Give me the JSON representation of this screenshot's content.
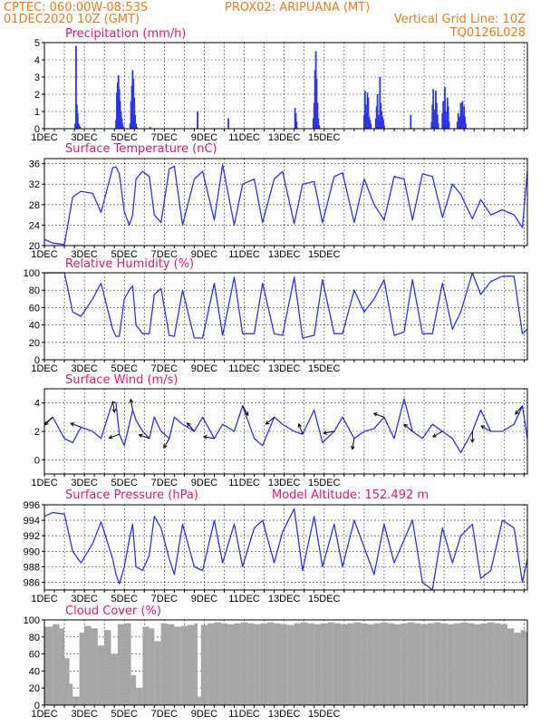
{
  "header": {
    "line1_left": "CPTEC:   060:00W-08:53S",
    "line1_right": "PROX02: ARIPUANA (MT)",
    "line2_left": "01DEC2020 10Z (GMT)",
    "line2_right": "Vertical Grid Line: 10Z",
    "line3_right": "TQ0126L028"
  },
  "x_ticks": [
    "1DEC",
    "3DEC",
    "5DEC",
    "7DEC",
    "9DEC",
    "11DEC",
    "13DEC",
    "15DEC"
  ],
  "colors": {
    "line": "#2a35e8",
    "bar": "#2a35e8",
    "cloud": "#a6a6a6",
    "header": "#e87a1e",
    "title": "#e0157a",
    "grid": "#000000"
  },
  "chart_data": [
    {
      "id": "precip",
      "type": "bar",
      "title": "Precipitation (mm/h)",
      "ylim": [
        0,
        5
      ],
      "yticks": [
        "0",
        "1",
        "2",
        "3",
        "4",
        "5"
      ],
      "x_unit": "hours since 01DEC2020 10Z",
      "x": [
        37,
        38,
        39,
        40,
        41,
        42,
        43,
        86,
        87,
        88,
        89,
        90,
        91,
        92,
        93,
        94,
        95,
        103,
        104,
        105,
        106,
        107,
        108,
        109,
        110,
        111,
        127,
        184,
        221,
        301,
        302,
        303,
        323,
        324,
        325,
        326,
        327,
        328,
        329,
        330,
        384,
        385,
        386,
        387,
        388,
        389,
        390,
        391,
        392,
        398,
        399,
        400,
        401,
        402,
        403,
        404,
        405,
        406,
        407,
        408,
        440,
        465,
        466,
        467,
        468,
        469,
        470,
        471,
        472,
        473,
        478,
        479,
        480,
        481,
        482,
        483,
        484,
        485,
        486,
        496,
        497,
        498,
        499,
        500,
        501,
        502,
        503,
        504,
        505,
        506
      ],
      "values": [
        0.3,
        4.8,
        1.4,
        0.9,
        0.3,
        0.2,
        0.1,
        0.5,
        2.1,
        2.7,
        3.1,
        2.3,
        1.6,
        1.0,
        0.6,
        0.3,
        0.1,
        0.3,
        1.6,
        2.5,
        3.4,
        2.9,
        1.8,
        0.8,
        0.3,
        0.1,
        0.1,
        1.0,
        0.6,
        1.2,
        0.9,
        0.4,
        0.6,
        1.5,
        3.4,
        4.5,
        2.9,
        1.5,
        0.6,
        0.2,
        0.8,
        2.2,
        1.4,
        0.9,
        2.1,
        1.8,
        0.7,
        0.5,
        0.3,
        0.6,
        1.3,
        2.0,
        0.8,
        0.4,
        3.0,
        1.5,
        1.0,
        0.7,
        0.5,
        0.2,
        0.8,
        0.4,
        1.4,
        2.3,
        1.1,
        0.5,
        2.2,
        1.5,
        0.8,
        0.3,
        0.9,
        1.6,
        1.2,
        2.4,
        1.0,
        0.5,
        1.8,
        1.3,
        0.4,
        0.4,
        0.9,
        0.5,
        0.7,
        1.5,
        1.1,
        1.6,
        0.8,
        1.3,
        0.7,
        0.3
      ]
    },
    {
      "id": "temp",
      "type": "line",
      "title": "Surface Temperature (nC)",
      "ylim": [
        20,
        37
      ],
      "yticks": [
        "20",
        "24",
        "28",
        "32",
        "36"
      ],
      "x_unit": "hours since 01DEC2020 10Z",
      "x": [
        0,
        10,
        24,
        34,
        44,
        58,
        68,
        82,
        86,
        90,
        96,
        102,
        106,
        110,
        118,
        126,
        132,
        140,
        150,
        156,
        166,
        180,
        190,
        204,
        214,
        228,
        238,
        252,
        262,
        276,
        286,
        300,
        310,
        324,
        334,
        348,
        358,
        372,
        384,
        396,
        408,
        420,
        432,
        442,
        454,
        466,
        478,
        490,
        500,
        514,
        524,
        536,
        550,
        564,
        574,
        580
      ],
      "values": [
        21.2,
        20.5,
        20.2,
        29.5,
        30.6,
        30.2,
        26.5,
        35.2,
        35.4,
        34.0,
        26.6,
        24.0,
        26.0,
        33.0,
        34.5,
        33.5,
        26.0,
        24.5,
        35.0,
        35.5,
        24.0,
        33.0,
        34.5,
        25.0,
        35.8,
        24.0,
        32.0,
        33.0,
        24.5,
        33.0,
        34.5,
        24.3,
        32.0,
        32.5,
        24.5,
        33.5,
        34.2,
        24.5,
        33.0,
        28.0,
        25.0,
        33.5,
        33.0,
        25.0,
        34.0,
        33.5,
        25.5,
        32.0,
        30.0,
        25.2,
        29.0,
        26.0,
        27.0,
        26.0,
        23.5,
        34.5
      ]
    },
    {
      "id": "rh",
      "type": "line",
      "title": "Relative Humidity (%)",
      "ylim": [
        0,
        100
      ],
      "yticks": [
        "0",
        "20",
        "40",
        "60",
        "80",
        "100"
      ],
      "x_unit": "hours since 01DEC2020 10Z",
      "x": [
        0,
        10,
        24,
        34,
        44,
        58,
        68,
        82,
        86,
        90,
        96,
        102,
        106,
        110,
        118,
        126,
        132,
        140,
        150,
        156,
        166,
        180,
        190,
        204,
        214,
        228,
        238,
        252,
        262,
        276,
        286,
        300,
        310,
        324,
        334,
        348,
        358,
        372,
        384,
        396,
        408,
        420,
        432,
        442,
        454,
        466,
        478,
        490,
        500,
        514,
        524,
        536,
        550,
        564,
        574,
        580
      ],
      "values": [
        100,
        100,
        100,
        55,
        50,
        70,
        88,
        35,
        27,
        27,
        70,
        80,
        85,
        40,
        30,
        30,
        75,
        82,
        28,
        27,
        80,
        25,
        25,
        88,
        28,
        95,
        30,
        30,
        88,
        30,
        28,
        95,
        25,
        28,
        92,
        30,
        30,
        80,
        55,
        70,
        92,
        28,
        32,
        92,
        30,
        30,
        88,
        35,
        55,
        100,
        75,
        90,
        96,
        96,
        30,
        35
      ]
    },
    {
      "id": "wind",
      "type": "line",
      "title": "Surface Wind (m/s)",
      "ylim": [
        -1,
        5
      ],
      "yticks": [
        "0",
        "2",
        "4"
      ],
      "x_unit": "hours since 01DEC2020 10Z",
      "x": [
        0,
        10,
        24,
        34,
        44,
        58,
        68,
        82,
        86,
        90,
        96,
        102,
        106,
        110,
        118,
        126,
        132,
        140,
        150,
        156,
        166,
        180,
        190,
        204,
        214,
        228,
        238,
        252,
        262,
        276,
        286,
        300,
        310,
        324,
        334,
        348,
        358,
        372,
        384,
        396,
        408,
        420,
        432,
        442,
        454,
        466,
        478,
        490,
        500,
        514,
        524,
        536,
        550,
        564,
        574,
        580
      ],
      "values": [
        2.5,
        3.0,
        1.5,
        1.2,
        2.3,
        2.0,
        1.5,
        4.1,
        4.0,
        1.8,
        1.0,
        2.5,
        3.5,
        2.8,
        2.0,
        1.5,
        3.0,
        2.0,
        1.5,
        3.0,
        2.5,
        2.0,
        3.0,
        1.5,
        2.5,
        2.0,
        3.8,
        1.5,
        1.0,
        3.0,
        2.5,
        2.0,
        1.8,
        3.5,
        1.2,
        2.0,
        3.0,
        1.5,
        2.0,
        2.2,
        3.0,
        1.5,
        4.3,
        2.0,
        1.5,
        2.5,
        2.0,
        1.5,
        0.5,
        2.0,
        3.5,
        2.0,
        2.0,
        2.5,
        3.8,
        1.5
      ]
    },
    {
      "id": "press",
      "type": "line",
      "title": "Surface Pressure (hPa)",
      "annotation": "Model Altitude: 152.492 m",
      "ylim": [
        985,
        996
      ],
      "yticks": [
        "986",
        "988",
        "990",
        "992",
        "994",
        "996"
      ],
      "x_unit": "hours since 01DEC2020 10Z",
      "x": [
        0,
        10,
        24,
        34,
        44,
        58,
        68,
        82,
        86,
        90,
        96,
        102,
        106,
        110,
        118,
        126,
        132,
        140,
        150,
        156,
        166,
        180,
        190,
        204,
        214,
        228,
        238,
        252,
        262,
        276,
        286,
        300,
        310,
        324,
        334,
        348,
        358,
        372,
        384,
        396,
        408,
        420,
        432,
        442,
        454,
        466,
        478,
        490,
        500,
        514,
        524,
        536,
        550,
        564,
        574,
        580
      ],
      "values": [
        994.5,
        995.0,
        994.8,
        990.0,
        988.5,
        991.0,
        993.8,
        989.0,
        987.0,
        985.8,
        988.0,
        991.5,
        993.5,
        988.0,
        987.5,
        989.5,
        994.5,
        993.0,
        989.0,
        987.0,
        993.5,
        988.0,
        987.5,
        994.0,
        988.5,
        993.5,
        988.0,
        993.0,
        994.0,
        988.5,
        992.5,
        995.5,
        987.5,
        994.5,
        988.0,
        993.5,
        988.0,
        994.0,
        990.5,
        987.0,
        993.5,
        988.5,
        991.5,
        994.0,
        986.0,
        985.0,
        993.0,
        988.5,
        992.0,
        993.5,
        986.5,
        987.5,
        994.0,
        993.0,
        986.0,
        989.0
      ]
    },
    {
      "id": "cloud",
      "type": "bar",
      "title": "Cloud Cover (%)",
      "ylim": [
        0,
        100
      ],
      "yticks": [
        "0",
        "20",
        "40",
        "60",
        "80",
        "100"
      ],
      "x_unit": "hours since 01DEC2020 10Z",
      "x": [
        0,
        10,
        18,
        24,
        30,
        34,
        42,
        48,
        56,
        64,
        72,
        80,
        88,
        96,
        104,
        110,
        118,
        126,
        132,
        140,
        148,
        156,
        164,
        172,
        180,
        184,
        188,
        196,
        204,
        212,
        220,
        228,
        236,
        244,
        252,
        260,
        268,
        276,
        284,
        292,
        300,
        308,
        316,
        324,
        332,
        340,
        348,
        356,
        364,
        372,
        380,
        388,
        396,
        404,
        412,
        420,
        428,
        436,
        444,
        452,
        460,
        468,
        476,
        484,
        492,
        500,
        508,
        516,
        524,
        532,
        540,
        548,
        556,
        564,
        572,
        578
      ],
      "values": [
        92,
        95,
        90,
        55,
        25,
        10,
        85,
        93,
        90,
        70,
        88,
        60,
        95,
        96,
        35,
        20,
        92,
        90,
        75,
        96,
        95,
        92,
        93,
        94,
        96,
        10,
        94,
        96,
        97,
        96,
        95,
        96,
        97,
        96,
        95,
        96,
        97,
        96,
        95,
        94,
        96,
        97,
        96,
        95,
        96,
        97,
        96,
        95,
        96,
        97,
        96,
        95,
        96,
        97,
        96,
        95,
        96,
        97,
        96,
        95,
        96,
        97,
        96,
        95,
        96,
        97,
        96,
        95,
        96,
        97,
        96,
        95,
        90,
        85,
        88,
        86
      ]
    }
  ]
}
